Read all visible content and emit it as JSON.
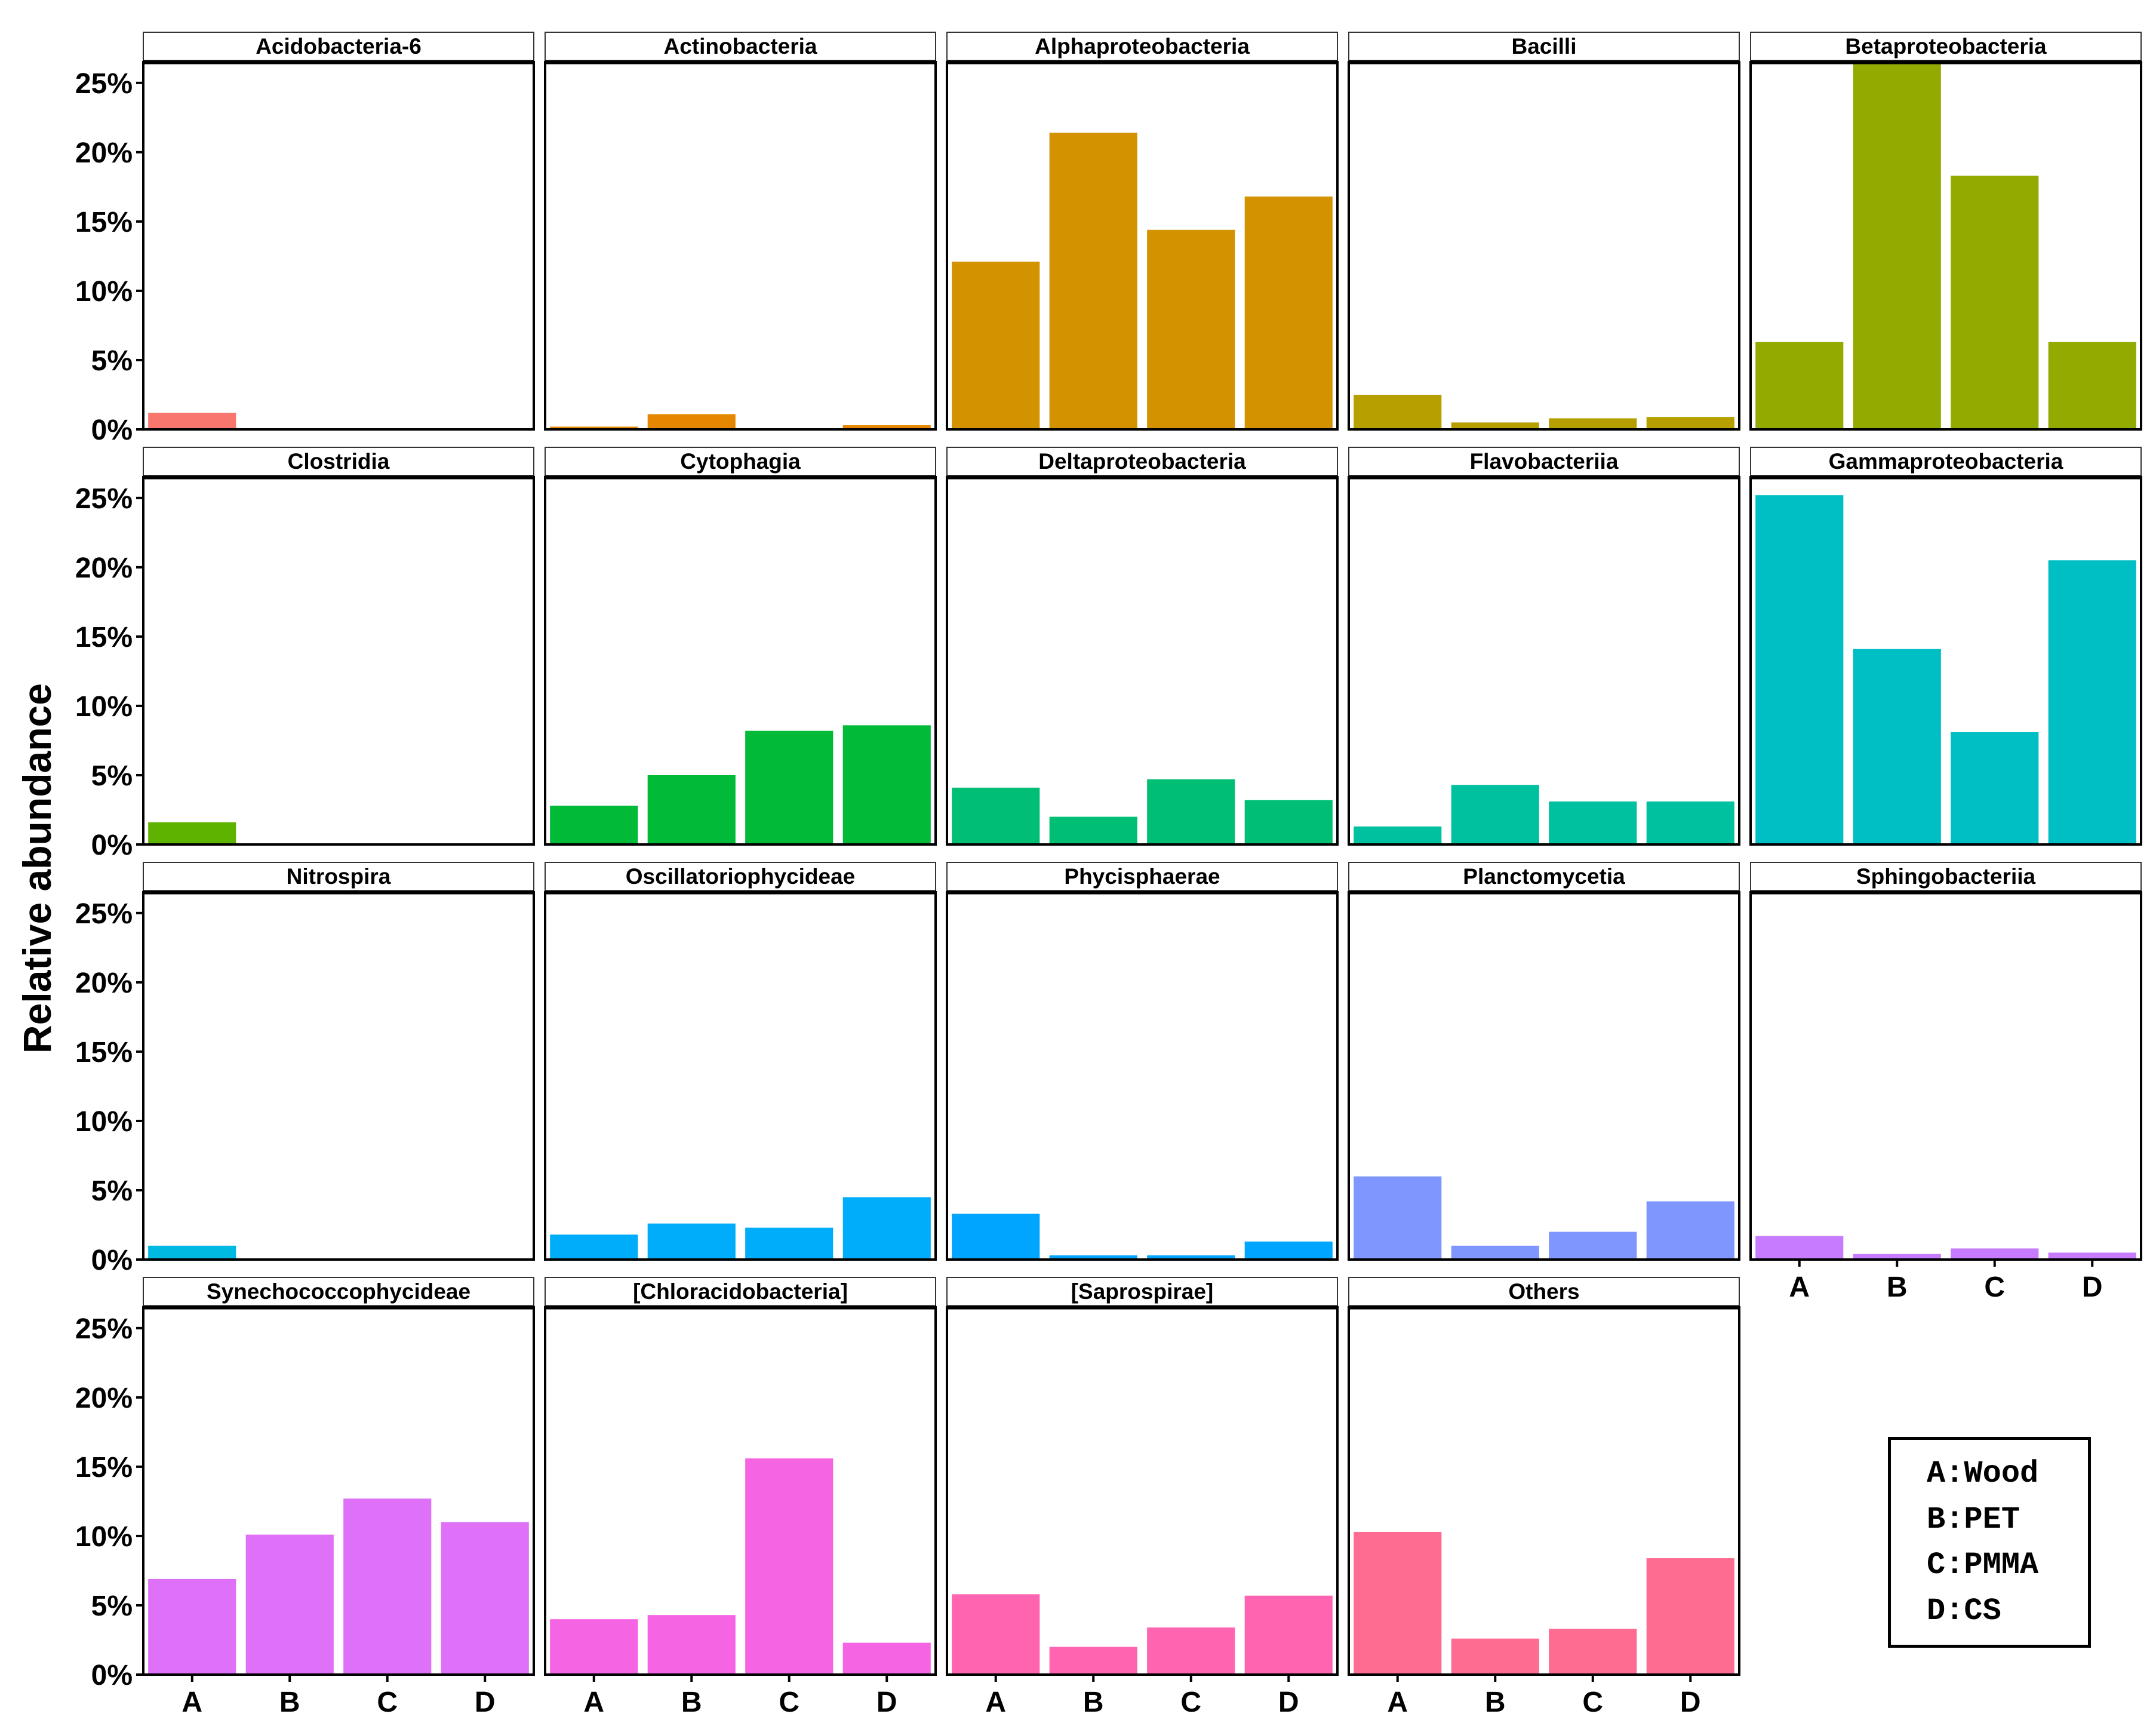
{
  "chart_data": {
    "type": "bar",
    "ylabel": "Relative abundance",
    "ylim": [
      0,
      26.5
    ],
    "yticks": [
      0,
      5,
      10,
      15,
      20,
      25
    ],
    "ytick_labels": [
      "0%",
      "5%",
      "10%",
      "15%",
      "20%",
      "25%"
    ],
    "categories": [
      "A",
      "B",
      "C",
      "D"
    ],
    "legend": [
      "A:Wood",
      "B:PET",
      "C:PMMA",
      "D:CS"
    ],
    "legend_position": "bottom-right",
    "panels": [
      {
        "name": "Acidobacteria-6",
        "color": "#F8766D",
        "values": [
          1.2,
          0.0,
          0.0,
          0.0
        ]
      },
      {
        "name": "Actinobacteria",
        "color": "#E58700",
        "values": [
          0.2,
          1.1,
          0.0,
          0.3
        ]
      },
      {
        "name": "Alphaproteobacteria",
        "color": "#D39200",
        "values": [
          12.1,
          21.4,
          14.4,
          16.8
        ]
      },
      {
        "name": "Bacilli",
        "color": "#B79F00",
        "values": [
          2.5,
          0.5,
          0.8,
          0.9
        ]
      },
      {
        "name": "Betaproteobacteria",
        "color": "#93AA00",
        "values": [
          6.3,
          26.5,
          18.3,
          6.3
        ]
      },
      {
        "name": "Clostridia",
        "color": "#5EB300",
        "values": [
          1.6,
          0.0,
          0.0,
          0.0
        ]
      },
      {
        "name": "Cytophagia",
        "color": "#00BA38",
        "values": [
          2.8,
          5.0,
          8.2,
          8.6
        ]
      },
      {
        "name": "Deltaproteobacteria",
        "color": "#00BF74",
        "values": [
          4.1,
          2.0,
          4.7,
          3.2
        ]
      },
      {
        "name": "Flavobacteriia",
        "color": "#00C19F",
        "values": [
          1.3,
          4.3,
          3.1,
          3.1
        ]
      },
      {
        "name": "Gammaproteobacteria",
        "color": "#00BFC4",
        "values": [
          25.2,
          14.1,
          8.1,
          20.5
        ]
      },
      {
        "name": "Nitrospira",
        "color": "#00B9E3",
        "values": [
          1.0,
          0.0,
          0.0,
          0.0
        ]
      },
      {
        "name": "Oscillatoriophycideae",
        "color": "#00ADFA",
        "values": [
          1.8,
          2.6,
          2.3,
          4.5
        ]
      },
      {
        "name": "Phycisphaerae",
        "color": "#00A5FF",
        "values": [
          3.3,
          0.3,
          0.3,
          1.3
        ]
      },
      {
        "name": "Planctomycetia",
        "color": "#7F96FF",
        "values": [
          6.0,
          1.0,
          2.0,
          4.2
        ]
      },
      {
        "name": "Sphingobacteriia",
        "color": "#C77CFF",
        "values": [
          1.7,
          0.4,
          0.8,
          0.5
        ]
      },
      {
        "name": "Synechococcophycideae",
        "color": "#DF70F8",
        "values": [
          6.9,
          10.1,
          12.7,
          11.0
        ]
      },
      {
        "name": "[Chloracidobacteria]",
        "color": "#F564E3",
        "values": [
          4.0,
          4.3,
          15.6,
          2.3
        ]
      },
      {
        "name": "[Saprospirae]",
        "color": "#FF64B0",
        "values": [
          5.8,
          2.0,
          3.4,
          5.7
        ]
      },
      {
        "name": "Others",
        "color": "#FF6C91",
        "values": [
          10.3,
          2.6,
          3.3,
          8.4
        ]
      }
    ]
  }
}
